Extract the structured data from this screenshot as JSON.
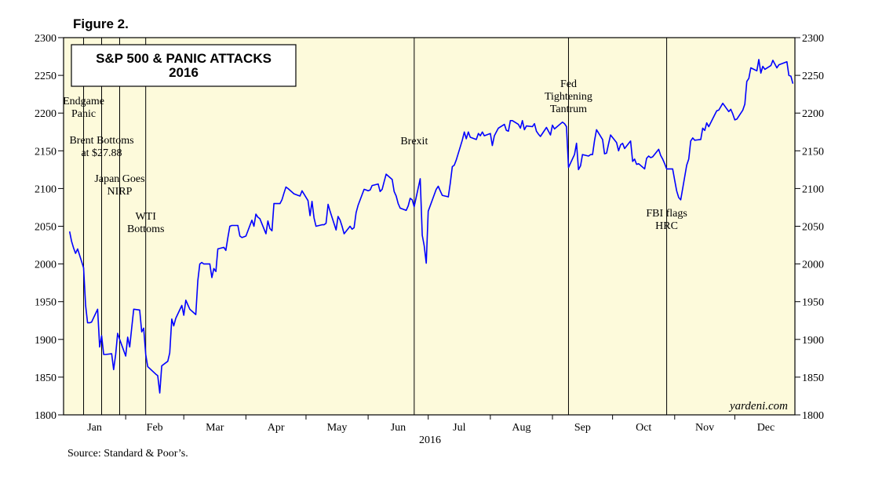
{
  "figure_label": "Figure 2.",
  "source": "Source: Standard & Poor’s.",
  "watermark": "yardeni.com",
  "colors": {
    "plot_bg": "#fdfadb",
    "line": "#0000ff",
    "axis": "#000000"
  },
  "chart_data": {
    "type": "line",
    "title": "S&P 500 & PANIC ATTACKS",
    "subtitle": "2016",
    "xlabel": "2016",
    "ylabel": "",
    "ylim": [
      1800,
      2300
    ],
    "xlim": [
      "2016-01-01",
      "2016-12-31"
    ],
    "y_ticks": [
      1800,
      1850,
      1900,
      1950,
      2000,
      2050,
      2100,
      2150,
      2200,
      2250,
      2300
    ],
    "x_tick_labels": [
      "Jan",
      "Feb",
      "Mar",
      "Apr",
      "May",
      "Jun",
      "Jul",
      "Aug",
      "Sep",
      "Oct",
      "Nov",
      "Dec"
    ],
    "grid": false,
    "legend": "none",
    "series": [
      {
        "values": [
          [
            "2016-01-04",
            2043
          ],
          [
            "2016-01-05",
            2030
          ],
          [
            "2016-01-06",
            2021
          ],
          [
            "2016-01-07",
            2014
          ],
          [
            "2016-01-08",
            2020
          ],
          [
            "2016-01-11",
            1995
          ],
          [
            "2016-01-12",
            1945
          ],
          [
            "2016-01-13",
            1922
          ],
          [
            "2016-01-14",
            1922
          ],
          [
            "2016-01-15",
            1923
          ],
          [
            "2016-01-18",
            1940
          ],
          [
            "2016-01-19",
            1890
          ],
          [
            "2016-01-20",
            1905
          ],
          [
            "2016-01-21",
            1880
          ],
          [
            "2016-01-22",
            1880
          ],
          [
            "2016-01-25",
            1881
          ],
          [
            "2016-01-26",
            1860
          ],
          [
            "2016-01-27",
            1880
          ],
          [
            "2016-01-28",
            1908
          ],
          [
            "2016-01-29",
            1900
          ],
          [
            "2016-02-01",
            1878
          ],
          [
            "2016-02-02",
            1903
          ],
          [
            "2016-02-03",
            1890
          ],
          [
            "2016-02-04",
            1915
          ],
          [
            "2016-02-05",
            1940
          ],
          [
            "2016-02-08",
            1939
          ],
          [
            "2016-02-09",
            1910
          ],
          [
            "2016-02-10",
            1915
          ],
          [
            "2016-02-11",
            1880
          ],
          [
            "2016-02-12",
            1864
          ],
          [
            "2016-02-16",
            1854
          ],
          [
            "2016-02-17",
            1852
          ],
          [
            "2016-02-18",
            1829
          ],
          [
            "2016-02-19",
            1865
          ],
          [
            "2016-02-22",
            1871
          ],
          [
            "2016-02-23",
            1882
          ],
          [
            "2016-02-24",
            1927
          ],
          [
            "2016-02-25",
            1918
          ],
          [
            "2016-02-26",
            1928
          ],
          [
            "2016-02-29",
            1945
          ],
          [
            "2016-03-01",
            1932
          ],
          [
            "2016-03-02",
            1952
          ],
          [
            "2016-03-03",
            1946
          ],
          [
            "2016-03-04",
            1940
          ],
          [
            "2016-03-07",
            1933
          ],
          [
            "2016-03-08",
            1978
          ],
          [
            "2016-03-09",
            2000
          ],
          [
            "2016-03-10",
            2002
          ],
          [
            "2016-03-11",
            2000
          ],
          [
            "2016-03-14",
            2000
          ],
          [
            "2016-03-15",
            1982
          ],
          [
            "2016-03-16",
            1994
          ],
          [
            "2016-03-17",
            1990
          ],
          [
            "2016-03-18",
            2020
          ],
          [
            "2016-03-21",
            2022
          ],
          [
            "2016-03-22",
            2018
          ],
          [
            "2016-03-23",
            2035
          ],
          [
            "2016-03-24",
            2050
          ],
          [
            "2016-03-25",
            2051
          ],
          [
            "2016-03-28",
            2051
          ],
          [
            "2016-03-29",
            2037
          ],
          [
            "2016-03-30",
            2035
          ],
          [
            "2016-03-31",
            2036
          ],
          [
            "2016-04-01",
            2037
          ],
          [
            "2016-04-04",
            2058
          ],
          [
            "2016-04-05",
            2050
          ],
          [
            "2016-04-06",
            2066
          ],
          [
            "2016-04-07",
            2062
          ],
          [
            "2016-04-08",
            2060
          ],
          [
            "2016-04-11",
            2040
          ],
          [
            "2016-04-12",
            2057
          ],
          [
            "2016-04-13",
            2047
          ],
          [
            "2016-04-14",
            2044
          ],
          [
            "2016-04-15",
            2080
          ],
          [
            "2016-04-18",
            2080
          ],
          [
            "2016-04-19",
            2085
          ],
          [
            "2016-04-20",
            2094
          ],
          [
            "2016-04-21",
            2102
          ],
          [
            "2016-04-22",
            2100
          ],
          [
            "2016-04-25",
            2093
          ],
          [
            "2016-04-26",
            2092
          ],
          [
            "2016-04-27",
            2091
          ],
          [
            "2016-04-28",
            2090
          ],
          [
            "2016-04-29",
            2097
          ],
          [
            "2016-05-02",
            2084
          ],
          [
            "2016-05-03",
            2064
          ],
          [
            "2016-05-04",
            2083
          ],
          [
            "2016-05-05",
            2061
          ],
          [
            "2016-05-06",
            2050
          ],
          [
            "2016-05-09",
            2052
          ],
          [
            "2016-05-10",
            2052
          ],
          [
            "2016-05-11",
            2054
          ],
          [
            "2016-05-12",
            2079
          ],
          [
            "2016-05-13",
            2070
          ],
          [
            "2016-05-16",
            2045
          ],
          [
            "2016-05-17",
            2063
          ],
          [
            "2016-05-18",
            2058
          ],
          [
            "2016-05-19",
            2050
          ],
          [
            "2016-05-20",
            2040
          ],
          [
            "2016-05-23",
            2050
          ],
          [
            "2016-05-24",
            2046
          ],
          [
            "2016-05-25",
            2048
          ],
          [
            "2016-05-26",
            2068
          ],
          [
            "2016-05-27",
            2078
          ],
          [
            "2016-05-30",
            2099
          ],
          [
            "2016-05-31",
            2098
          ],
          [
            "2016-06-01",
            2097
          ],
          [
            "2016-06-02",
            2098
          ],
          [
            "2016-06-03",
            2104
          ],
          [
            "2016-06-06",
            2106
          ],
          [
            "2016-06-07",
            2096
          ],
          [
            "2016-06-08",
            2099
          ],
          [
            "2016-06-09",
            2109
          ],
          [
            "2016-06-10",
            2119
          ],
          [
            "2016-06-13",
            2112
          ],
          [
            "2016-06-14",
            2096
          ],
          [
            "2016-06-15",
            2090
          ],
          [
            "2016-06-16",
            2080
          ],
          [
            "2016-06-17",
            2074
          ],
          [
            "2016-06-20",
            2071
          ],
          [
            "2016-06-21",
            2077
          ],
          [
            "2016-06-22",
            2087
          ],
          [
            "2016-06-23",
            2085
          ],
          [
            "2016-06-24",
            2076
          ],
          [
            "2016-06-27",
            2113
          ],
          [
            "2016-06-28",
            2038
          ],
          [
            "2016-06-29",
            2024
          ],
          [
            "2016-06-30",
            2001
          ],
          [
            "2016-07-01",
            2070
          ],
          [
            "2016-07-05",
            2099
          ],
          [
            "2016-07-06",
            2103
          ],
          [
            "2016-07-07",
            2097
          ],
          [
            "2016-07-08",
            2091
          ],
          [
            "2016-07-11",
            2089
          ],
          [
            "2016-07-12",
            2107
          ],
          [
            "2016-07-13",
            2129
          ],
          [
            "2016-07-14",
            2131
          ],
          [
            "2016-07-15",
            2138
          ],
          [
            "2016-07-18",
            2164
          ],
          [
            "2016-07-19",
            2175
          ],
          [
            "2016-07-20",
            2166
          ],
          [
            "2016-07-21",
            2175
          ],
          [
            "2016-07-22",
            2168
          ],
          [
            "2016-07-25",
            2165
          ],
          [
            "2016-07-26",
            2173
          ],
          [
            "2016-07-27",
            2170
          ],
          [
            "2016-07-28",
            2175
          ],
          [
            "2016-07-29",
            2170
          ],
          [
            "2016-08-01",
            2173
          ],
          [
            "2016-08-02",
            2157
          ],
          [
            "2016-08-03",
            2170
          ],
          [
            "2016-08-04",
            2175
          ],
          [
            "2016-08-05",
            2180
          ],
          [
            "2016-08-08",
            2185
          ],
          [
            "2016-08-09",
            2177
          ],
          [
            "2016-08-10",
            2176
          ],
          [
            "2016-08-11",
            2190
          ],
          [
            "2016-08-12",
            2190
          ],
          [
            "2016-08-15",
            2185
          ],
          [
            "2016-08-16",
            2180
          ],
          [
            "2016-08-17",
            2190
          ],
          [
            "2016-08-18",
            2178
          ],
          [
            "2016-08-19",
            2183
          ],
          [
            "2016-08-22",
            2182
          ],
          [
            "2016-08-23",
            2186
          ],
          [
            "2016-08-24",
            2176
          ],
          [
            "2016-08-25",
            2172
          ],
          [
            "2016-08-26",
            2169
          ],
          [
            "2016-08-29",
            2181
          ],
          [
            "2016-08-30",
            2176
          ],
          [
            "2016-08-31",
            2171
          ],
          [
            "2016-09-01",
            2184
          ],
          [
            "2016-09-02",
            2179
          ],
          [
            "2016-09-06",
            2188
          ],
          [
            "2016-09-07",
            2186
          ],
          [
            "2016-09-08",
            2182
          ],
          [
            "2016-09-09",
            2128
          ],
          [
            "2016-09-12",
            2145
          ],
          [
            "2016-09-13",
            2160
          ],
          [
            "2016-09-14",
            2125
          ],
          [
            "2016-09-15",
            2130
          ],
          [
            "2016-09-16",
            2145
          ],
          [
            "2016-09-19",
            2143
          ],
          [
            "2016-09-20",
            2145
          ],
          [
            "2016-09-21",
            2145
          ],
          [
            "2016-09-22",
            2164
          ],
          [
            "2016-09-23",
            2178
          ],
          [
            "2016-09-26",
            2165
          ],
          [
            "2016-09-27",
            2146
          ],
          [
            "2016-09-28",
            2147
          ],
          [
            "2016-09-29",
            2159
          ],
          [
            "2016-09-30",
            2171
          ],
          [
            "2016-10-03",
            2161
          ],
          [
            "2016-10-04",
            2150
          ],
          [
            "2016-10-05",
            2158
          ],
          [
            "2016-10-06",
            2160
          ],
          [
            "2016-10-07",
            2153
          ],
          [
            "2016-10-10",
            2163
          ],
          [
            "2016-10-11",
            2136
          ],
          [
            "2016-10-12",
            2139
          ],
          [
            "2016-10-13",
            2132
          ],
          [
            "2016-10-14",
            2133
          ],
          [
            "2016-10-17",
            2126
          ],
          [
            "2016-10-18",
            2140
          ],
          [
            "2016-10-19",
            2143
          ],
          [
            "2016-10-20",
            2141
          ],
          [
            "2016-10-21",
            2142
          ],
          [
            "2016-10-24",
            2152
          ],
          [
            "2016-10-25",
            2144
          ],
          [
            "2016-10-26",
            2139
          ],
          [
            "2016-10-27",
            2133
          ],
          [
            "2016-10-28",
            2126
          ],
          [
            "2016-10-31",
            2126
          ],
          [
            "2016-11-01",
            2111
          ],
          [
            "2016-11-02",
            2097
          ],
          [
            "2016-11-03",
            2088
          ],
          [
            "2016-11-04",
            2085
          ],
          [
            "2016-11-07",
            2131
          ],
          [
            "2016-11-08",
            2139
          ],
          [
            "2016-11-09",
            2163
          ],
          [
            "2016-11-10",
            2167
          ],
          [
            "2016-11-11",
            2164
          ],
          [
            "2016-11-14",
            2165
          ],
          [
            "2016-11-15",
            2180
          ],
          [
            "2016-11-16",
            2177
          ],
          [
            "2016-11-17",
            2187
          ],
          [
            "2016-11-18",
            2182
          ],
          [
            "2016-11-21",
            2198
          ],
          [
            "2016-11-22",
            2203
          ],
          [
            "2016-11-23",
            2204
          ],
          [
            "2016-11-25",
            2213
          ],
          [
            "2016-11-28",
            2202
          ],
          [
            "2016-11-29",
            2205
          ],
          [
            "2016-11-30",
            2199
          ],
          [
            "2016-12-01",
            2191
          ],
          [
            "2016-12-02",
            2192
          ],
          [
            "2016-12-05",
            2204
          ],
          [
            "2016-12-06",
            2212
          ],
          [
            "2016-12-07",
            2242
          ],
          [
            "2016-12-08",
            2246
          ],
          [
            "2016-12-09",
            2260
          ],
          [
            "2016-12-12",
            2256
          ],
          [
            "2016-12-13",
            2271
          ],
          [
            "2016-12-14",
            2253
          ],
          [
            "2016-12-15",
            2262
          ],
          [
            "2016-12-16",
            2258
          ],
          [
            "2016-12-19",
            2263
          ],
          [
            "2016-12-20",
            2270
          ],
          [
            "2016-12-21",
            2265
          ],
          [
            "2016-12-22",
            2260
          ],
          [
            "2016-12-23",
            2264
          ],
          [
            "2016-12-27",
            2268
          ],
          [
            "2016-12-28",
            2250
          ],
          [
            "2016-12-29",
            2249
          ],
          [
            "2016-12-30",
            2239
          ]
        ]
      }
    ],
    "annotations": [
      {
        "date": "2016-01-11",
        "lines": [
          "Endgame",
          "Panic"
        ]
      },
      {
        "date": "2016-01-20",
        "lines": [
          "Brent Bottoms",
          "at $27.88"
        ]
      },
      {
        "date": "2016-01-29",
        "lines": [
          "Japan Goes",
          "NIRP"
        ]
      },
      {
        "date": "2016-02-11",
        "lines": [
          "WTI",
          "Bottoms"
        ]
      },
      {
        "date": "2016-06-24",
        "lines": [
          "Brexit"
        ]
      },
      {
        "date": "2016-09-09",
        "lines": [
          "Fed",
          "Tightening",
          "Tantrum"
        ]
      },
      {
        "date": "2016-10-28",
        "lines": [
          "FBI flags",
          "HRC"
        ]
      }
    ]
  }
}
